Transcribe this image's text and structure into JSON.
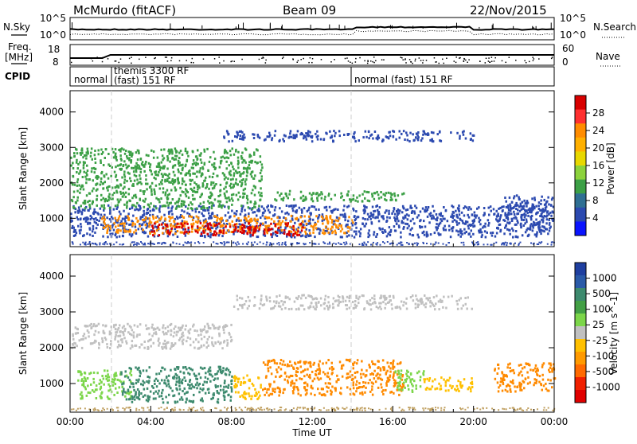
{
  "header": {
    "station": "McMurdo (fitACF)",
    "beam": "Beam 09",
    "date": "22/Nov/2015"
  },
  "summary_panels": {
    "nsky": {
      "label": "N.Sky",
      "ticks": [
        "10^5",
        "10^0"
      ]
    },
    "nsearch": {
      "label": "N.Search",
      "ticks": [
        "10^5",
        "10^0"
      ]
    },
    "freq": {
      "label_line1": "Freq.",
      "label_line2": "[MHz]",
      "ticks": [
        "18",
        "8"
      ]
    },
    "nave": {
      "label": "Nave",
      "ticks": [
        "60",
        "0"
      ]
    },
    "cpid": {
      "label": "CPID",
      "segments": [
        {
          "text": "normal",
          "start_hour": 0,
          "end_hour": 1.95
        },
        {
          "text": "themis 3300 RF",
          "start_hour": 1.95,
          "end_hour": 2.9
        },
        {
          "text": "(fast) 151 RF",
          "start_hour": 1.95,
          "end_hour": 14.0
        },
        {
          "text": "normal (fast) 151 RF",
          "start_hour": 14.0,
          "end_hour": 24.0
        }
      ]
    }
  },
  "power_colorbar": {
    "label": "Power [dB]",
    "ticks": [
      "28",
      "24",
      "20",
      "16",
      "12",
      "8",
      "4"
    ],
    "colors": [
      "#d80000",
      "#ff3030",
      "#ff8c00",
      "#ffb000",
      "#e8d800",
      "#8cd23c",
      "#3ca046",
      "#2f6f93",
      "#2c4ab0",
      "#0a14ff"
    ]
  },
  "velocity_colorbar": {
    "label": "Velocity [m s^-1]",
    "ticks": [
      "1000",
      "500",
      "100",
      "25",
      "-25",
      "-100",
      "-500",
      "-1000"
    ],
    "colors": [
      "#1f3fa0",
      "#2a5aa8",
      "#3d8a6e",
      "#43a046",
      "#7cd64a",
      "#c0c0c0",
      "#ffc000",
      "#ff9a00",
      "#ff6a00",
      "#f02000",
      "#e00000"
    ]
  },
  "chart_data": [
    {
      "type": "heatmap",
      "name": "power",
      "ylabel": "Slant Range [km]",
      "yticks": [
        "1000",
        "2000",
        "3000",
        "4000"
      ],
      "ylim": [
        200,
        4600
      ],
      "xlim": [
        0,
        24
      ],
      "xticks": [
        "00:00",
        "04:00",
        "08:00",
        "12:00",
        "16:00",
        "20:00",
        "00:00"
      ],
      "bands": [
        {
          "t0": 0.0,
          "t1": 23.8,
          "r0": 500,
          "r1": 1400,
          "level": "8"
        },
        {
          "t0": 1.5,
          "t1": 14.0,
          "r0": 600,
          "r1": 1100,
          "level": "20"
        },
        {
          "t0": 4.0,
          "t1": 11.5,
          "r0": 550,
          "r1": 900,
          "level": "28"
        },
        {
          "t0": 0.0,
          "t1": 9.5,
          "r0": 1300,
          "r1": 3000,
          "level": "12"
        },
        {
          "t0": 10.0,
          "t1": 16.5,
          "r0": 1500,
          "r1": 1800,
          "level": "12"
        },
        {
          "t0": 7.5,
          "t1": 20.0,
          "r0": 3200,
          "r1": 3500,
          "level": "8"
        },
        {
          "t0": 21.5,
          "t1": 24.0,
          "r0": 700,
          "r1": 1700,
          "level": "8"
        }
      ]
    },
    {
      "type": "heatmap",
      "name": "velocity",
      "ylabel": "Slant Range [km]",
      "yticks": [
        "1000",
        "2000",
        "3000",
        "4000"
      ],
      "ylim": [
        200,
        4600
      ],
      "xlim": [
        0,
        24
      ],
      "xticks": [
        "00:00",
        "04:00",
        "08:00",
        "12:00",
        "16:00",
        "20:00",
        "00:00"
      ],
      "xlabel": "Time UT",
      "bands": [
        {
          "t0": 0.3,
          "t1": 3.0,
          "r0": 600,
          "r1": 1400,
          "level": "100"
        },
        {
          "t0": 2.5,
          "t1": 8.0,
          "r0": 500,
          "r1": 1500,
          "level": "500"
        },
        {
          "t0": 8.0,
          "t1": 9.5,
          "r0": 600,
          "r1": 1300,
          "level": "-25"
        },
        {
          "t0": 9.5,
          "t1": 16.5,
          "r0": 700,
          "r1": 1700,
          "level": "-100"
        },
        {
          "t0": 16.0,
          "t1": 17.5,
          "r0": 800,
          "r1": 1400,
          "level": "100"
        },
        {
          "t0": 17.5,
          "t1": 20.0,
          "r0": 800,
          "r1": 1200,
          "level": "-25"
        },
        {
          "t0": 21.0,
          "t1": 24.0,
          "r0": 800,
          "r1": 1600,
          "level": "-100"
        },
        {
          "t0": 0.0,
          "t1": 8.0,
          "r0": 2000,
          "r1": 2700,
          "level": "25"
        },
        {
          "t0": 8.0,
          "t1": 20.0,
          "r0": 3100,
          "r1": 3500,
          "level": "25"
        }
      ]
    }
  ]
}
